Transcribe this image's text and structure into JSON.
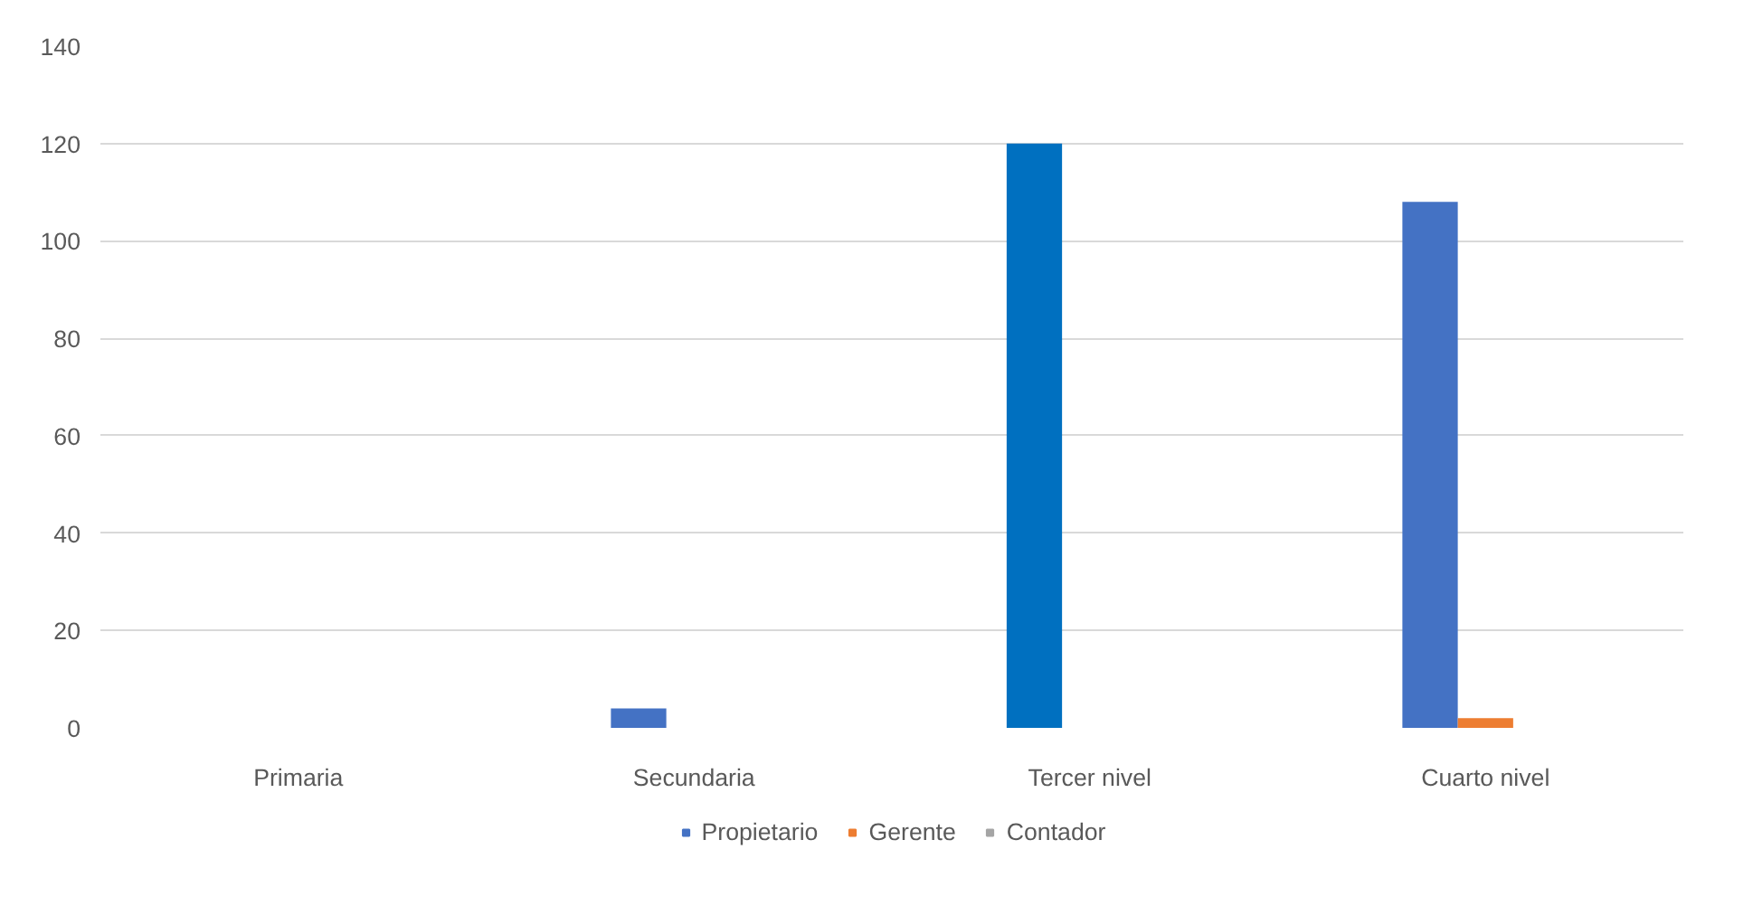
{
  "chart_data": {
    "type": "bar",
    "categories": [
      "Primaria",
      "Secundaria",
      "Tercer nivel",
      "Cuarto nivel"
    ],
    "series": [
      {
        "name": "Propietario",
        "color": "#4472c4",
        "colors": [
          "#4472c4",
          "#4472c4",
          "#0070c0",
          "#4472c4"
        ],
        "values": [
          0,
          4,
          120,
          108
        ]
      },
      {
        "name": "Gerente",
        "color": "#ed7d31",
        "values": [
          0,
          0,
          0,
          2
        ]
      },
      {
        "name": "Contador",
        "color": "#a5a5a5",
        "values": [
          0,
          0,
          0,
          0
        ]
      }
    ],
    "ylim": [
      0,
      140
    ],
    "yticks": [
      0,
      20,
      40,
      60,
      80,
      100,
      120,
      140
    ],
    "grid": "y",
    "legend": "bottom"
  }
}
